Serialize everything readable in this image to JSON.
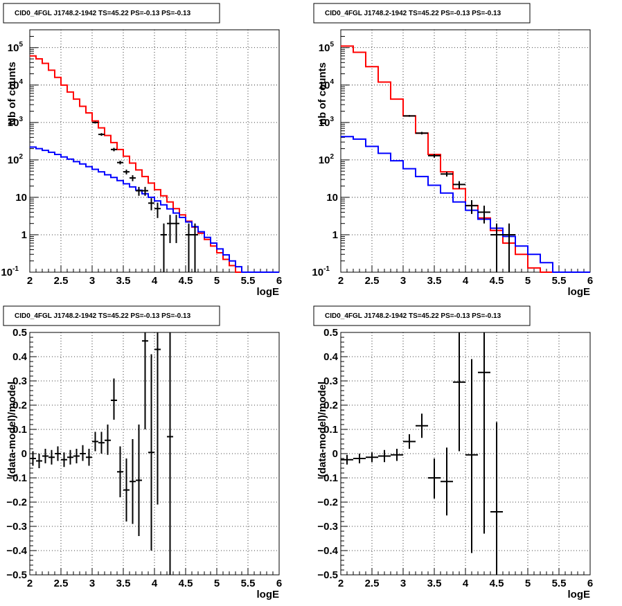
{
  "chart_data": [
    {
      "type": "histogram",
      "title": "CID0_4FGL J1748.2-1942 TS=45.22 PS=-0.13 PS=-0.13",
      "xlabel": "logE",
      "ylabel": "Nb of counts",
      "xlim": [
        2,
        6
      ],
      "ylim": [
        0.1,
        300000
      ],
      "yscale": "log",
      "grid": true,
      "xticks": [
        "2",
        "2.5",
        "3",
        "3.5",
        "4",
        "4.5",
        "5",
        "5.5",
        "6"
      ],
      "yticks": [
        {
          "v": 0.1,
          "label": "10",
          "sup": "-1"
        },
        {
          "v": 1,
          "label": "1",
          "sup": ""
        },
        {
          "v": 10,
          "label": "10",
          "sup": ""
        },
        {
          "v": 100,
          "label": "10",
          "sup": "2"
        },
        {
          "v": 1000,
          "label": "10",
          "sup": "3"
        },
        {
          "v": 10000,
          "label": "10",
          "sup": "4"
        },
        {
          "v": 100000,
          "label": "10",
          "sup": "5"
        }
      ],
      "series": [
        {
          "color": "#ff0000",
          "edges": [
            2,
            6
          ],
          "values": [
            60000,
            50000,
            38000,
            25000,
            16000,
            10000,
            6500,
            4200,
            2700,
            1800,
            1100,
            720,
            450,
            290,
            190,
            125,
            82,
            54,
            36,
            24,
            16,
            11,
            7.5,
            5,
            3.4,
            2.3,
            1.6,
            1.1,
            0.75,
            0.5,
            0.33,
            0.22,
            0.15,
            0.1,
            0.1,
            0.1,
            0.1,
            0.1,
            0.1,
            0.1
          ]
        },
        {
          "color": "#0000ff",
          "edges": [
            2,
            6
          ],
          "values": [
            220,
            200,
            180,
            160,
            140,
            120,
            105,
            90,
            78,
            66,
            56,
            48,
            40,
            34,
            28,
            23,
            19,
            15.5,
            12.5,
            10,
            8,
            6.3,
            4.9,
            3.8,
            2.9,
            2.2,
            1.65,
            1.2,
            0.85,
            0.6,
            0.42,
            0.29,
            0.2,
            0.14,
            0.1,
            0.1,
            0.1,
            0.1,
            0.1,
            0.1
          ]
        },
        {
          "type": "errorbars",
          "color": "#000000",
          "points": [
            {
              "x": 3.05,
              "y": 1000,
              "xerr": 0.05,
              "ylo": 940,
              "yhi": 1060
            },
            {
              "x": 3.15,
              "y": 480,
              "xerr": 0.05,
              "ylo": 440,
              "yhi": 520
            },
            {
              "x": 3.35,
              "y": 190,
              "xerr": 0.05,
              "ylo": 170,
              "yhi": 210
            },
            {
              "x": 3.45,
              "y": 85,
              "xerr": 0.05,
              "ylo": 76,
              "yhi": 95
            },
            {
              "x": 3.55,
              "y": 48,
              "xerr": 0.05,
              "ylo": 41,
              "yhi": 55
            },
            {
              "x": 3.65,
              "y": 33,
              "xerr": 0.05,
              "ylo": 27,
              "yhi": 39
            },
            {
              "x": 3.75,
              "y": 15,
              "xerr": 0.05,
              "ylo": 11,
              "yhi": 19
            },
            {
              "x": 3.85,
              "y": 15,
              "xerr": 0.05,
              "ylo": 11,
              "yhi": 19
            },
            {
              "x": 3.95,
              "y": 7,
              "xerr": 0.05,
              "ylo": 4.5,
              "yhi": 9.5
            },
            {
              "x": 4.05,
              "y": 5,
              "xerr": 0.05,
              "ylo": 2.8,
              "yhi": 7.2
            },
            {
              "x": 4.15,
              "y": 1,
              "xerr": 0.05,
              "ylo": 0.1,
              "yhi": 2
            },
            {
              "x": 4.25,
              "y": 2,
              "xerr": 0.05,
              "ylo": 0.6,
              "yhi": 3.4
            },
            {
              "x": 4.35,
              "y": 2,
              "xerr": 0.05,
              "ylo": 0.6,
              "yhi": 3.4
            },
            {
              "x": 4.55,
              "y": 1,
              "xerr": 0.05,
              "ylo": 0.1,
              "yhi": 2
            },
            {
              "x": 4.65,
              "y": 1,
              "xerr": 0.05,
              "ylo": 0.1,
              "yhi": 2
            }
          ]
        }
      ]
    },
    {
      "type": "histogram",
      "title": "CID0_4FGL J1748.2-1942 TS=45.22 PS=-0.13 PS=-0.13",
      "xlabel": "logE",
      "ylabel": "nb of counts",
      "xlim": [
        2,
        6
      ],
      "ylim": [
        0.1,
        300000
      ],
      "yscale": "log",
      "grid": true,
      "xticks": [
        "2",
        "2.5",
        "3",
        "3.5",
        "4",
        "4.5",
        "5",
        "5.5",
        "6"
      ],
      "yticks": [
        {
          "v": 0.1,
          "label": "10",
          "sup": "-1"
        },
        {
          "v": 1,
          "label": "1",
          "sup": ""
        },
        {
          "v": 10,
          "label": "10",
          "sup": ""
        },
        {
          "v": 100,
          "label": "10",
          "sup": "2"
        },
        {
          "v": 1000,
          "label": "10",
          "sup": "3"
        },
        {
          "v": 10000,
          "label": "10",
          "sup": "4"
        },
        {
          "v": 100000,
          "label": "10",
          "sup": "5"
        }
      ],
      "series": [
        {
          "color": "#ff0000",
          "edges": [
            2,
            6
          ],
          "values": [
            110000,
            75000,
            31000,
            12000,
            4200,
            1500,
            520,
            140,
            48,
            17,
            6,
            2.8,
            1.3,
            0.6,
            0.3,
            0.13,
            0.1,
            0.1,
            0.1,
            0.1
          ]
        },
        {
          "color": "#0000ff",
          "edges": [
            2,
            6
          ],
          "values": [
            420,
            360,
            230,
            150,
            95,
            58,
            36,
            21,
            13,
            7.5,
            4.5,
            2.6,
            1.5,
            0.9,
            0.5,
            0.3,
            0.18,
            0.1,
            0.1,
            0.1
          ]
        },
        {
          "type": "errorbars",
          "color": "#000000",
          "points": [
            {
              "x": 3.1,
              "y": 1500,
              "xerr": 0.1,
              "ylo": 1420,
              "yhi": 1580
            },
            {
              "x": 3.3,
              "y": 520,
              "xerr": 0.1,
              "ylo": 480,
              "yhi": 560
            },
            {
              "x": 3.5,
              "y": 130,
              "xerr": 0.1,
              "ylo": 115,
              "yhi": 145
            },
            {
              "x": 3.7,
              "y": 42,
              "xerr": 0.1,
              "ylo": 36,
              "yhi": 48
            },
            {
              "x": 3.9,
              "y": 22,
              "xerr": 0.1,
              "ylo": 17,
              "yhi": 27
            },
            {
              "x": 4.1,
              "y": 6,
              "xerr": 0.1,
              "ylo": 3.6,
              "yhi": 8.4
            },
            {
              "x": 4.3,
              "y": 4,
              "xerr": 0.1,
              "ylo": 2,
              "yhi": 6
            },
            {
              "x": 4.5,
              "y": 1,
              "xerr": 0.1,
              "ylo": 0.1,
              "yhi": 2
            },
            {
              "x": 4.7,
              "y": 1,
              "xerr": 0.1,
              "ylo": 0.1,
              "yhi": 2
            }
          ]
        }
      ]
    },
    {
      "type": "errorbars",
      "title": "CID0_4FGL J1748.2-1942 TS=45.22 PS=-0.13 PS=-0.13",
      "xlabel": "logE",
      "ylabel": "(data-model)/model",
      "xlim": [
        2,
        6
      ],
      "ylim": [
        -0.5,
        0.5
      ],
      "yscale": "linear",
      "grid": true,
      "xticks": [
        "2",
        "2.5",
        "3",
        "3.5",
        "4",
        "4.5",
        "5",
        "5.5",
        "6"
      ],
      "yticks": [
        {
          "v": -0.5,
          "label": "−0.5",
          "sup": ""
        },
        {
          "v": -0.4,
          "label": "−0.4",
          "sup": ""
        },
        {
          "v": -0.3,
          "label": "−0.3",
          "sup": ""
        },
        {
          "v": -0.2,
          "label": "−0.2",
          "sup": ""
        },
        {
          "v": -0.1,
          "label": "−0.1",
          "sup": ""
        },
        {
          "v": 0,
          "label": "0",
          "sup": ""
        },
        {
          "v": 0.1,
          "label": "0.1",
          "sup": ""
        },
        {
          "v": 0.2,
          "label": "0.2",
          "sup": ""
        },
        {
          "v": 0.3,
          "label": "0.3",
          "sup": ""
        },
        {
          "v": 0.4,
          "label": "0.4",
          "sup": ""
        },
        {
          "v": 0.5,
          "label": "0.5",
          "sup": ""
        }
      ],
      "series": [
        {
          "type": "errorbars",
          "color": "#000000",
          "points": [
            {
              "x": 2.05,
              "y": -0.02,
              "xerr": 0.05,
              "ylo": -0.05,
              "yhi": 0.01
            },
            {
              "x": 2.15,
              "y": -0.03,
              "xerr": 0.05,
              "ylo": -0.06,
              "yhi": 0.0
            },
            {
              "x": 2.25,
              "y": -0.01,
              "xerr": 0.05,
              "ylo": -0.04,
              "yhi": 0.02
            },
            {
              "x": 2.35,
              "y": -0.015,
              "xerr": 0.05,
              "ylo": -0.045,
              "yhi": 0.015
            },
            {
              "x": 2.45,
              "y": 0.0,
              "xerr": 0.05,
              "ylo": -0.03,
              "yhi": 0.03
            },
            {
              "x": 2.55,
              "y": -0.025,
              "xerr": 0.05,
              "ylo": -0.055,
              "yhi": 0.005
            },
            {
              "x": 2.65,
              "y": -0.015,
              "xerr": 0.05,
              "ylo": -0.045,
              "yhi": 0.015
            },
            {
              "x": 2.75,
              "y": -0.01,
              "xerr": 0.05,
              "ylo": -0.04,
              "yhi": 0.02
            },
            {
              "x": 2.85,
              "y": 0.0,
              "xerr": 0.05,
              "ylo": -0.03,
              "yhi": 0.035
            },
            {
              "x": 2.95,
              "y": -0.015,
              "xerr": 0.05,
              "ylo": -0.05,
              "yhi": 0.02
            },
            {
              "x": 3.05,
              "y": 0.05,
              "xerr": 0.05,
              "ylo": 0.01,
              "yhi": 0.09
            },
            {
              "x": 3.15,
              "y": 0.045,
              "xerr": 0.05,
              "ylo": 0.0,
              "yhi": 0.09
            },
            {
              "x": 3.25,
              "y": 0.055,
              "xerr": 0.05,
              "ylo": -0.005,
              "yhi": 0.12
            },
            {
              "x": 3.35,
              "y": 0.22,
              "xerr": 0.05,
              "ylo": 0.14,
              "yhi": 0.31
            },
            {
              "x": 3.45,
              "y": -0.075,
              "xerr": 0.05,
              "ylo": -0.18,
              "yhi": 0.03
            },
            {
              "x": 3.55,
              "y": -0.15,
              "xerr": 0.05,
              "ylo": -0.28,
              "yhi": -0.02
            },
            {
              "x": 3.65,
              "y": -0.115,
              "xerr": 0.05,
              "ylo": -0.29,
              "yhi": 0.06
            },
            {
              "x": 3.75,
              "y": -0.11,
              "xerr": 0.05,
              "ylo": -0.34,
              "yhi": 0.12
            },
            {
              "x": 3.85,
              "y": 0.465,
              "xerr": 0.05,
              "ylo": 0.1,
              "yhi": 0.5
            },
            {
              "x": 3.95,
              "y": 0.005,
              "xerr": 0.05,
              "ylo": -0.4,
              "yhi": 0.41
            },
            {
              "x": 4.05,
              "y": 0.43,
              "xerr": 0.05,
              "ylo": -0.21,
              "yhi": 0.5
            },
            {
              "x": 4.25,
              "y": 0.07,
              "xerr": 0.05,
              "ylo": -0.5,
              "yhi": 0.5
            }
          ]
        }
      ]
    },
    {
      "type": "errorbars",
      "title": "CID0_4FGL J1748.2-1942 TS=45.22 PS=-0.13 PS=-0.13",
      "xlabel": "logE",
      "ylabel": "(data-model)/model",
      "xlim": [
        2,
        6
      ],
      "ylim": [
        -0.5,
        0.5
      ],
      "yscale": "linear",
      "grid": true,
      "xticks": [
        "2",
        "2.5",
        "3",
        "3.5",
        "4",
        "4.5",
        "5",
        "5.5",
        "6"
      ],
      "yticks": [
        {
          "v": -0.5,
          "label": "−0.5",
          "sup": ""
        },
        {
          "v": -0.4,
          "label": "−0.4",
          "sup": ""
        },
        {
          "v": -0.3,
          "label": "−0.3",
          "sup": ""
        },
        {
          "v": -0.2,
          "label": "−0.2",
          "sup": ""
        },
        {
          "v": -0.1,
          "label": "−0.1",
          "sup": ""
        },
        {
          "v": 0,
          "label": "0",
          "sup": ""
        },
        {
          "v": 0.1,
          "label": "0.1",
          "sup": ""
        },
        {
          "v": 0.2,
          "label": "0.2",
          "sup": ""
        },
        {
          "v": 0.3,
          "label": "0.3",
          "sup": ""
        },
        {
          "v": 0.4,
          "label": "0.4",
          "sup": ""
        },
        {
          "v": 0.5,
          "label": "0.5",
          "sup": ""
        }
      ],
      "series": [
        {
          "type": "errorbars",
          "color": "#000000",
          "points": [
            {
              "x": 2.1,
              "y": -0.025,
              "xerr": 0.1,
              "ylo": -0.045,
              "yhi": -0.005
            },
            {
              "x": 2.3,
              "y": -0.02,
              "xerr": 0.1,
              "ylo": -0.04,
              "yhi": 0.0
            },
            {
              "x": 2.5,
              "y": -0.015,
              "xerr": 0.1,
              "ylo": -0.035,
              "yhi": 0.005
            },
            {
              "x": 2.7,
              "y": -0.01,
              "xerr": 0.1,
              "ylo": -0.035,
              "yhi": 0.015
            },
            {
              "x": 2.9,
              "y": -0.005,
              "xerr": 0.1,
              "ylo": -0.03,
              "yhi": 0.02
            },
            {
              "x": 3.1,
              "y": 0.05,
              "xerr": 0.1,
              "ylo": 0.02,
              "yhi": 0.08
            },
            {
              "x": 3.3,
              "y": 0.115,
              "xerr": 0.1,
              "ylo": 0.065,
              "yhi": 0.165
            },
            {
              "x": 3.5,
              "y": -0.1,
              "xerr": 0.1,
              "ylo": -0.185,
              "yhi": -0.02
            },
            {
              "x": 3.7,
              "y": -0.115,
              "xerr": 0.1,
              "ylo": -0.255,
              "yhi": 0.025
            },
            {
              "x": 3.9,
              "y": 0.295,
              "xerr": 0.1,
              "ylo": 0.01,
              "yhi": 0.5
            },
            {
              "x": 4.1,
              "y": -0.005,
              "xerr": 0.1,
              "ylo": -0.41,
              "yhi": 0.39
            },
            {
              "x": 4.3,
              "y": 0.335,
              "xerr": 0.1,
              "ylo": -0.33,
              "yhi": 0.5
            },
            {
              "x": 4.5,
              "y": -0.24,
              "xerr": 0.1,
              "ylo": -0.5,
              "yhi": 0.13
            }
          ]
        }
      ]
    }
  ]
}
